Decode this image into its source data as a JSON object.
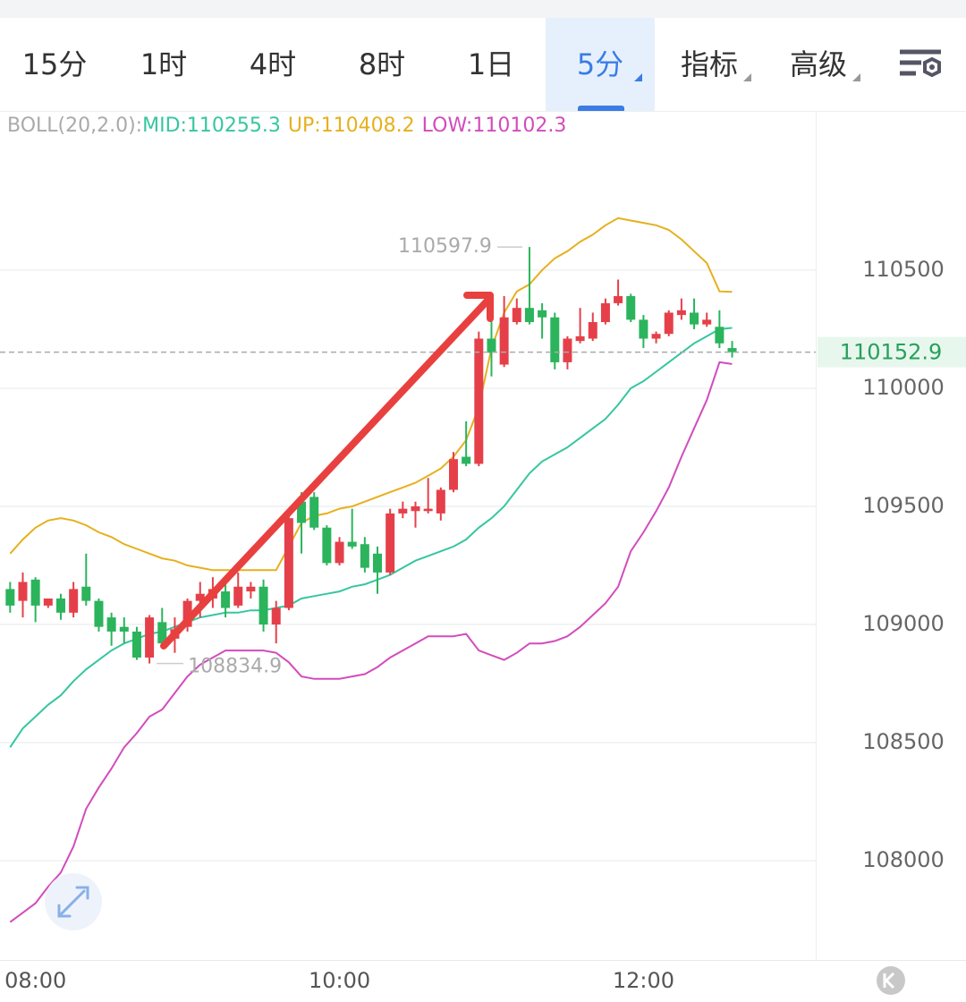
{
  "tabs": [
    "15分",
    "1时",
    "4时",
    "8时",
    "1日",
    "5分",
    "指标",
    "高级"
  ],
  "chart_data": {
    "type": "candlestick",
    "legend_title": "BOLL(20,2.0):",
    "x": [
      "07:50",
      "07:55",
      "08:00",
      "08:05",
      "08:10",
      "08:15",
      "08:20",
      "08:25",
      "08:30",
      "08:35",
      "08:40",
      "08:45",
      "08:50",
      "08:55",
      "09:00",
      "09:05",
      "09:10",
      "09:15",
      "09:20",
      "09:25",
      "09:30",
      "09:35",
      "09:40",
      "09:45",
      "09:50",
      "09:55",
      "10:00",
      "10:05",
      "10:10",
      "10:15",
      "10:20",
      "10:25",
      "10:30",
      "10:35",
      "10:40",
      "10:45",
      "10:50",
      "10:55",
      "11:00",
      "11:05",
      "11:10",
      "11:15",
      "11:20",
      "11:25",
      "11:30",
      "11:35",
      "11:40",
      "11:45",
      "11:50",
      "11:55",
      "12:00",
      "12:05",
      "12:10",
      "12:15",
      "12:20",
      "12:25",
      "12:30",
      "12:35"
    ],
    "open": [
      109150,
      109100,
      109190,
      109080,
      109110,
      109050,
      109160,
      109100,
      109030,
      108990,
      108970,
      108860,
      109010,
      108940,
      108990,
      109100,
      109110,
      109140,
      109080,
      109140,
      109160,
      109000,
      109070,
      109520,
      109540,
      109410,
      109260,
      109350,
      109340,
      109300,
      109220,
      109470,
      109480,
      109480,
      109470,
      109570,
      109710,
      109680,
      110210,
      110100,
      110280,
      110340,
      110330,
      110300,
      110110,
      110200,
      110210,
      110280,
      110360,
      110390,
      110290,
      110210,
      110230,
      110310,
      110320,
      110270,
      110260,
      110170
    ],
    "high": [
      109180,
      109220,
      109200,
      109110,
      109130,
      109180,
      109300,
      109110,
      109050,
      109030,
      108990,
      109040,
      109070,
      109030,
      109110,
      109180,
      109200,
      109170,
      109220,
      109180,
      109190,
      109100,
      109470,
      109560,
      109560,
      109420,
      109370,
      109490,
      109370,
      109330,
      109490,
      109520,
      109520,
      109620,
      109580,
      109730,
      109860,
      110240,
      110300,
      110390,
      110380,
      110597.9,
      110360,
      110320,
      110220,
      110340,
      110320,
      110380,
      110460,
      110400,
      110310,
      110240,
      110330,
      110380,
      110380,
      110320,
      110330,
      110200
    ],
    "low": [
      109050,
      109030,
      109010,
      109070,
      109020,
      109030,
      109080,
      108970,
      108910,
      108920,
      108850,
      108834.9,
      108910,
      108880,
      108970,
      109030,
      109070,
      109030,
      109070,
      109110,
      108970,
      108920,
      109060,
      109300,
      109400,
      109250,
      109250,
      109320,
      109220,
      109130,
      109210,
      109450,
      109410,
      109470,
      109440,
      109560,
      109670,
      109670,
      110050,
      110090,
      110270,
      110270,
      110210,
      110080,
      110080,
      110190,
      110200,
      110270,
      110350,
      110280,
      110170,
      110190,
      110220,
      110290,
      110250,
      110260,
      110170,
      110130
    ],
    "close": [
      109080,
      109180,
      109080,
      109110,
      109050,
      109150,
      109100,
      108990,
      108970,
      108970,
      108860,
      109030,
      108920,
      108980,
      109100,
      109130,
      109150,
      109070,
      109160,
      109160,
      109000,
      109070,
      109450,
      109430,
      109410,
      109260,
      109350,
      109330,
      109240,
      109220,
      109470,
      109490,
      109500,
      109490,
      109570,
      109700,
      109680,
      110210,
      110150,
      110300,
      110340,
      110280,
      110300,
      110110,
      110210,
      110220,
      110280,
      110360,
      110390,
      110290,
      110210,
      110230,
      110320,
      110330,
      110270,
      110290,
      110190,
      110152.9
    ],
    "up_color": "#e5404a",
    "down_color": "#2bb45c",
    "series": [
      {
        "name": "MID:",
        "color": "#36c6a0",
        "values": [
          108480,
          108560,
          108610,
          108660,
          108700,
          108760,
          108810,
          108850,
          108890,
          108920,
          108940,
          108960,
          108970,
          108990,
          109010,
          109030,
          109040,
          109050,
          109050,
          109060,
          109060,
          109070,
          109080,
          109110,
          109120,
          109130,
          109140,
          109160,
          109170,
          109190,
          109210,
          109240,
          109270,
          109290,
          109310,
          109330,
          109360,
          109410,
          109450,
          109500,
          109570,
          109640,
          109690,
          109720,
          109750,
          109790,
          109830,
          109870,
          109930,
          110000,
          110030,
          110070,
          110110,
          110150,
          110190,
          110220,
          110250,
          110255.3
        ]
      },
      {
        "name": "UP:",
        "color": "#e6b01e",
        "values": [
          109300,
          109360,
          109410,
          109440,
          109450,
          109440,
          109420,
          109390,
          109370,
          109340,
          109320,
          109300,
          109280,
          109270,
          109250,
          109240,
          109230,
          109230,
          109230,
          109230,
          109230,
          109230,
          109330,
          109430,
          109460,
          109470,
          109490,
          109500,
          109520,
          109540,
          109560,
          109580,
          109600,
          109630,
          109660,
          109710,
          109780,
          109920,
          110170,
          110320,
          110410,
          110440,
          110500,
          110550,
          110580,
          110620,
          110650,
          110690,
          110720,
          110710,
          110700,
          110690,
          110670,
          110630,
          110580,
          110530,
          110410,
          110408.2
        ]
      },
      {
        "name": "LOW:",
        "color": "#d24cbc",
        "values": [
          107740,
          107780,
          107820,
          107890,
          107950,
          108060,
          108220,
          108310,
          108390,
          108480,
          108540,
          108610,
          108640,
          108710,
          108780,
          108830,
          108860,
          108890,
          108890,
          108890,
          108890,
          108880,
          108840,
          108780,
          108770,
          108770,
          108770,
          108780,
          108790,
          108820,
          108860,
          108890,
          108920,
          108950,
          108950,
          108950,
          108960,
          108890,
          108870,
          108850,
          108880,
          108920,
          108920,
          108930,
          108950,
          108990,
          109040,
          109090,
          109160,
          109310,
          109390,
          109480,
          109580,
          109710,
          109830,
          109950,
          110110,
          110102.3
        ]
      }
    ],
    "ylim": [
      107580,
      111170
    ],
    "yticks": [
      108000,
      108500,
      109000,
      109500,
      110000,
      110500
    ],
    "xlim": [
      "07:46",
      "13:08"
    ],
    "xticks": [
      "08:00",
      "10:00",
      "12:00"
    ],
    "grid": true
  }
}
